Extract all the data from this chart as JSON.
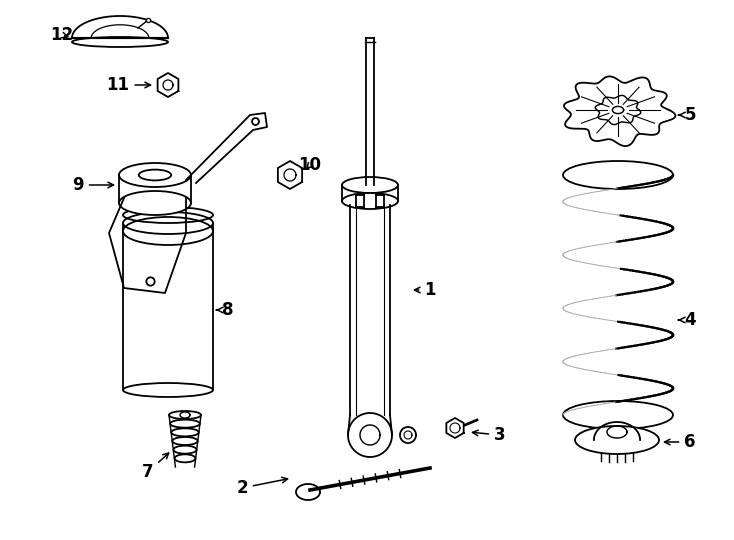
{
  "bg_color": "#ffffff",
  "line_color": "#000000",
  "lw": 1.3,
  "fig_width": 7.34,
  "fig_height": 5.4,
  "font_size": 12
}
